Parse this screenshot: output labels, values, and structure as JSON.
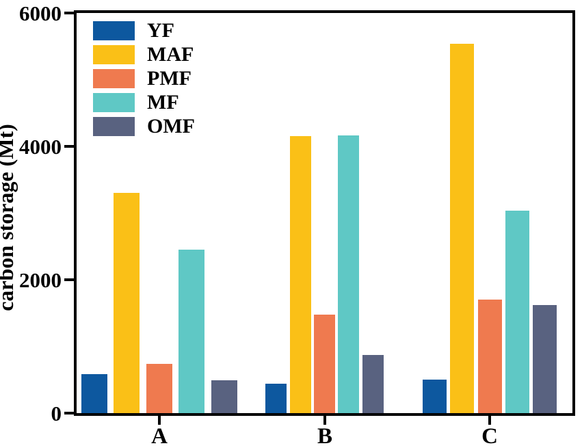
{
  "figure": {
    "background": "#ffffff",
    "axis_color": "#000000"
  },
  "y_axis": {
    "label": "carbon storage (Mt)",
    "tick_labels": [
      "0",
      "2000",
      "4000",
      "6000"
    ]
  },
  "x_axis": {
    "tick_labels": [
      "A",
      "B",
      "C"
    ]
  },
  "legend": {
    "items": [
      {
        "label": "YF",
        "color": "#0d589f"
      },
      {
        "label": "MAF",
        "color": "#fac017"
      },
      {
        "label": "PMF",
        "color": "#ef7a4f"
      },
      {
        "label": "MF",
        "color": "#5fc8c5"
      },
      {
        "label": "OMF",
        "color": "#596280"
      }
    ]
  },
  "chart_data": {
    "type": "bar",
    "categories": [
      "A",
      "B",
      "C"
    ],
    "series": [
      {
        "name": "YF",
        "color": "#0d589f",
        "values": [
          580,
          440,
          500
        ]
      },
      {
        "name": "MAF",
        "color": "#fac017",
        "values": [
          3300,
          4150,
          5540
        ]
      },
      {
        "name": "PMF",
        "color": "#ef7a4f",
        "values": [
          740,
          1480,
          1700
        ]
      },
      {
        "name": "MF",
        "color": "#5fc8c5",
        "values": [
          2450,
          4160,
          3040
        ]
      },
      {
        "name": "OMF",
        "color": "#596280",
        "values": [
          490,
          870,
          1620
        ]
      }
    ],
    "title": "",
    "xlabel": "",
    "ylabel": "carbon storage (Mt)",
    "ylim": [
      0,
      6000
    ],
    "yticks": [
      0,
      2000,
      4000,
      6000
    ],
    "grid": false,
    "legend_position": "upper-left"
  }
}
